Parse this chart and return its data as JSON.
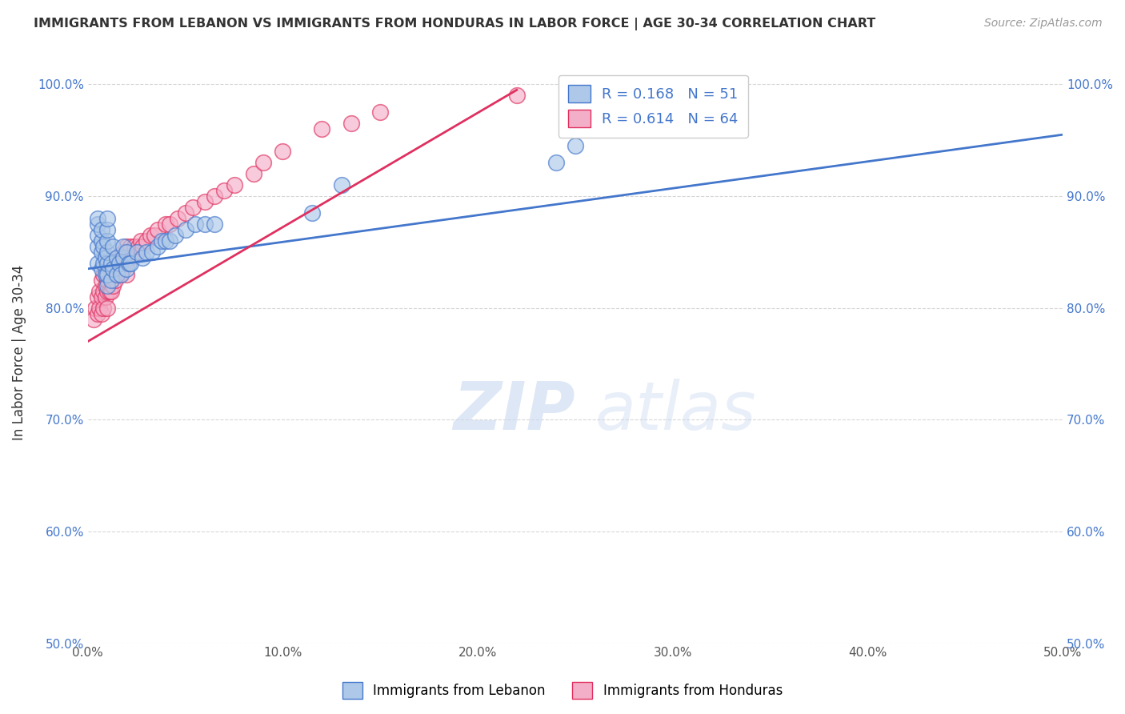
{
  "title": "IMMIGRANTS FROM LEBANON VS IMMIGRANTS FROM HONDURAS IN LABOR FORCE | AGE 30-34 CORRELATION CHART",
  "source_text": "Source: ZipAtlas.com",
  "ylabel": "In Labor Force | Age 30-34",
  "xlim": [
    0.0,
    0.5
  ],
  "ylim": [
    0.5,
    1.02
  ],
  "xticks": [
    0.0,
    0.1,
    0.2,
    0.3,
    0.4,
    0.5
  ],
  "xticklabels": [
    "0.0%",
    "10.0%",
    "20.0%",
    "30.0%",
    "40.0%",
    "50.0%"
  ],
  "yticks": [
    0.5,
    0.6,
    0.7,
    0.8,
    0.9,
    1.0
  ],
  "yticklabels": [
    "50.0%",
    "60.0%",
    "70.0%",
    "80.0%",
    "90.0%",
    "100.0%"
  ],
  "legend_labels": [
    "Immigrants from Lebanon",
    "Immigrants from Honduras"
  ],
  "R_lebanon": 0.168,
  "N_lebanon": 51,
  "R_honduras": 0.614,
  "N_honduras": 64,
  "color_lebanon": "#adc8e8",
  "color_honduras": "#f4afc8",
  "line_color_lebanon": "#4477cc",
  "line_color_honduras": "#e03060",
  "legend_text_color": "#4477cc",
  "watermark_zip_color": "#c8d8f0",
  "watermark_atlas_color": "#c8d8f0",
  "lebanon_x": [
    0.005,
    0.005,
    0.005,
    0.005,
    0.005,
    0.007,
    0.007,
    0.007,
    0.007,
    0.008,
    0.008,
    0.009,
    0.009,
    0.01,
    0.01,
    0.01,
    0.01,
    0.01,
    0.01,
    0.01,
    0.012,
    0.012,
    0.013,
    0.013,
    0.015,
    0.015,
    0.016,
    0.017,
    0.018,
    0.018,
    0.02,
    0.02,
    0.021,
    0.022,
    0.025,
    0.028,
    0.03,
    0.033,
    0.036,
    0.038,
    0.04,
    0.042,
    0.045,
    0.05,
    0.055,
    0.06,
    0.065,
    0.115,
    0.13,
    0.24,
    0.25
  ],
  "lebanon_y": [
    0.84,
    0.855,
    0.865,
    0.875,
    0.88,
    0.835,
    0.85,
    0.86,
    0.87,
    0.84,
    0.855,
    0.83,
    0.845,
    0.82,
    0.83,
    0.84,
    0.85,
    0.86,
    0.87,
    0.88,
    0.825,
    0.84,
    0.835,
    0.855,
    0.83,
    0.845,
    0.84,
    0.83,
    0.845,
    0.855,
    0.835,
    0.85,
    0.84,
    0.84,
    0.85,
    0.845,
    0.85,
    0.85,
    0.855,
    0.86,
    0.86,
    0.86,
    0.865,
    0.87,
    0.875,
    0.875,
    0.875,
    0.885,
    0.91,
    0.93,
    0.945
  ],
  "honduras_x": [
    0.003,
    0.004,
    0.005,
    0.005,
    0.006,
    0.006,
    0.007,
    0.007,
    0.007,
    0.008,
    0.008,
    0.008,
    0.009,
    0.009,
    0.009,
    0.01,
    0.01,
    0.01,
    0.01,
    0.011,
    0.011,
    0.012,
    0.012,
    0.013,
    0.013,
    0.014,
    0.014,
    0.015,
    0.015,
    0.016,
    0.016,
    0.018,
    0.018,
    0.019,
    0.02,
    0.02,
    0.02,
    0.022,
    0.022,
    0.024,
    0.025,
    0.026,
    0.027,
    0.028,
    0.03,
    0.032,
    0.034,
    0.036,
    0.04,
    0.042,
    0.046,
    0.05,
    0.054,
    0.06,
    0.065,
    0.07,
    0.075,
    0.085,
    0.09,
    0.1,
    0.12,
    0.135,
    0.15,
    0.22
  ],
  "honduras_y": [
    0.79,
    0.8,
    0.795,
    0.81,
    0.8,
    0.815,
    0.795,
    0.81,
    0.825,
    0.8,
    0.815,
    0.83,
    0.81,
    0.82,
    0.835,
    0.8,
    0.815,
    0.825,
    0.84,
    0.815,
    0.83,
    0.815,
    0.83,
    0.82,
    0.835,
    0.825,
    0.84,
    0.83,
    0.845,
    0.83,
    0.845,
    0.835,
    0.85,
    0.84,
    0.83,
    0.845,
    0.855,
    0.845,
    0.855,
    0.855,
    0.85,
    0.855,
    0.86,
    0.855,
    0.86,
    0.865,
    0.865,
    0.87,
    0.875,
    0.875,
    0.88,
    0.885,
    0.89,
    0.895,
    0.9,
    0.905,
    0.91,
    0.92,
    0.93,
    0.94,
    0.96,
    0.965,
    0.975,
    0.99
  ],
  "line_lebanon_x0": 0.0,
  "line_lebanon_x1": 0.5,
  "line_lebanon_y0": 0.835,
  "line_lebanon_y1": 0.955,
  "line_honduras_x0": 0.0,
  "line_honduras_x1": 0.22,
  "line_honduras_y0": 0.77,
  "line_honduras_y1": 0.995
}
